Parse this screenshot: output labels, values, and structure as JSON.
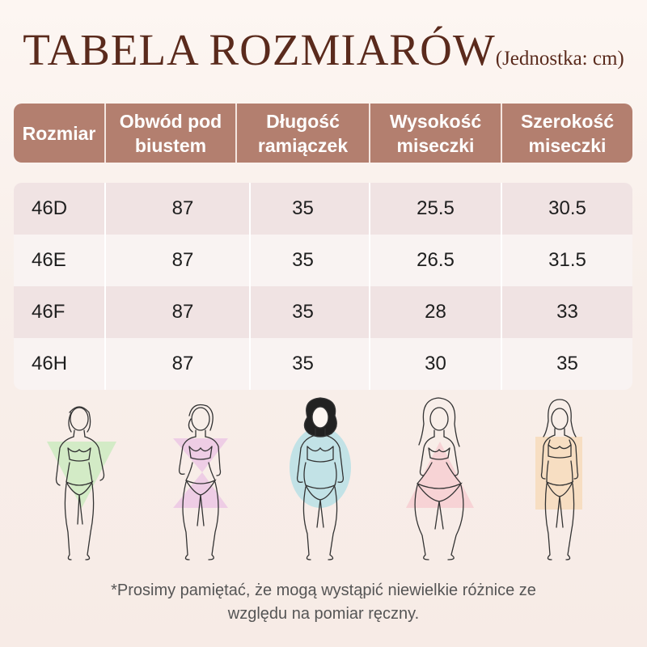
{
  "title": "TABELA ROZMIARÓW",
  "unit_note": "(Jednostka: cm)",
  "table": {
    "headers": [
      [
        "Rozmiar"
      ],
      [
        "Obwód pod",
        "biustem"
      ],
      [
        "Długość",
        "ramiączek"
      ],
      [
        "Wysokość",
        "miseczki"
      ],
      [
        "Szerokość",
        "miseczki"
      ]
    ],
    "rows": [
      [
        "46D",
        "87",
        "35",
        "25.5",
        "30.5"
      ],
      [
        "46E",
        "87",
        "35",
        "26.5",
        "31.5"
      ],
      [
        "46F",
        "87",
        "35",
        "28",
        "33"
      ],
      [
        "46H",
        "87",
        "35",
        "30",
        "35"
      ]
    ]
  },
  "figures": [
    {
      "icon": "inverted-triangle-body-icon",
      "color": "#cdeac0"
    },
    {
      "icon": "hourglass-body-icon",
      "color": "#ecc9e4"
    },
    {
      "icon": "oval-body-icon",
      "color": "#bfe2e6"
    },
    {
      "icon": "triangle-body-icon",
      "color": "#f6cfd3"
    },
    {
      "icon": "rectangle-body-icon",
      "color": "#f7ddc0"
    }
  ],
  "footnote": {
    "line1": "*Prosimy pamiętać, że mogą wystąpić niewielkie różnice ze",
    "line2": "względu na pomiar ręczny."
  }
}
